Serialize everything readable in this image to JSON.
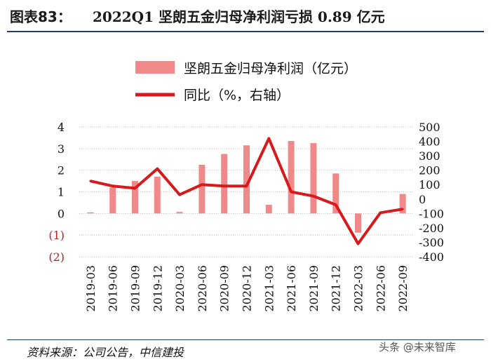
{
  "header": {
    "figure_label": "图表83：",
    "title": "2022Q1 坚朗五金归母净利润亏损 0.89 亿元"
  },
  "footer": {
    "source": "资料来源：公司公告，中信建投",
    "watermark": "头条 @未来智库"
  },
  "colors": {
    "bar": "#f08a8a",
    "line": "#d7191c",
    "grid": "#bfbfbf",
    "negative_label": "#b22222",
    "rule": "#1f3e6f"
  },
  "chart_data": {
    "type": "bar",
    "categories": [
      "2019-03",
      "2019-06",
      "2019-09",
      "2019-12",
      "2020-03",
      "2020-06",
      "2020-09",
      "2020-12",
      "2021-03",
      "2021-06",
      "2021-09",
      "2021-12",
      "2022-03",
      "2022-06",
      "2022-09"
    ],
    "series": [
      {
        "name": "坚朗五金归母净利润（亿元）",
        "type": "bar",
        "axis": "left",
        "values": [
          0.05,
          1.2,
          1.5,
          1.7,
          0.07,
          2.25,
          2.75,
          3.15,
          0.4,
          3.35,
          3.25,
          1.85,
          -0.89,
          null,
          0.9
        ]
      },
      {
        "name": "同比（%，右轴）",
        "type": "line",
        "axis": "right",
        "values": [
          125,
          90,
          75,
          210,
          30,
          100,
          90,
          90,
          420,
          50,
          20,
          -40,
          -310,
          -95,
          -70
        ]
      }
    ],
    "left_axis": {
      "min": -2,
      "max": 4,
      "ticks": [
        "4",
        "3",
        "2",
        "1",
        "0",
        "(1)",
        "(2)"
      ]
    },
    "right_axis": {
      "min": -400,
      "max": 500,
      "ticks": [
        "500",
        "400",
        "300",
        "200",
        "100",
        "0",
        "-100",
        "-200",
        "-300",
        "-400"
      ]
    },
    "grid": true,
    "legend_position": "top"
  }
}
